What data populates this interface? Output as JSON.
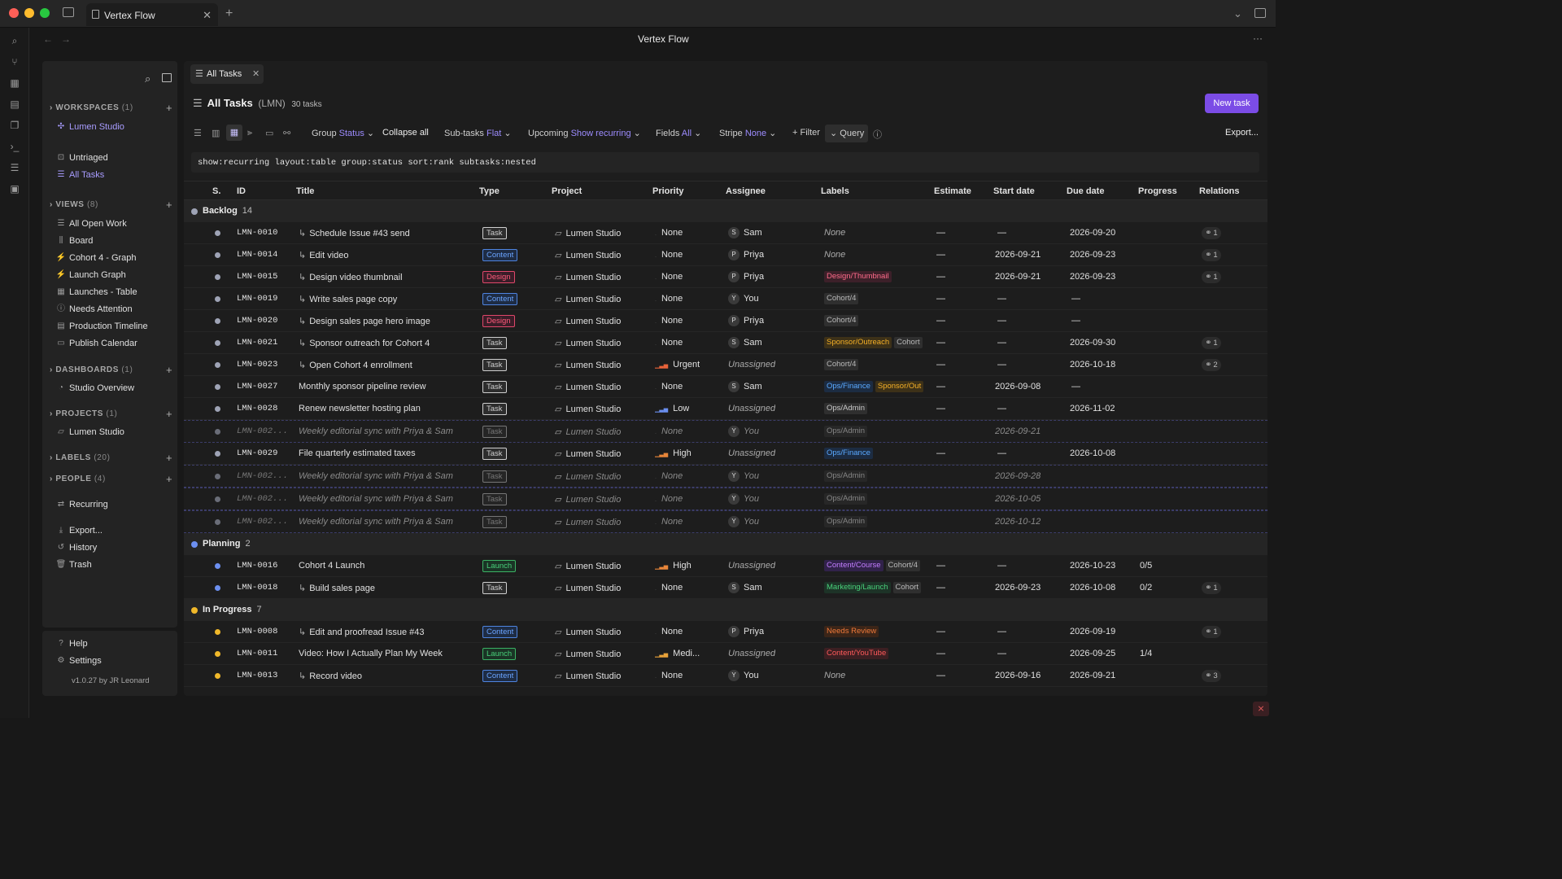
{
  "window": {
    "tab_title": "Vertex Flow",
    "title": "Vertex Flow",
    "menu": "···"
  },
  "sidebar": {
    "workspaces": {
      "label": "WORKSPACES",
      "count": "(1)",
      "items": [
        "Lumen Studio"
      ]
    },
    "top_items": [
      "Untriaged",
      "All Tasks"
    ],
    "views": {
      "label": "VIEWS",
      "count": "(8)",
      "items": [
        "All Open Work",
        "Board",
        "Cohort 4 - Graph",
        "Launch Graph",
        "Launches - Table",
        "Needs Attention",
        "Production Timeline",
        "Publish Calendar"
      ]
    },
    "dashboards": {
      "label": "DASHBOARDS",
      "count": "(1)",
      "items": [
        "Studio Overview"
      ]
    },
    "projects": {
      "label": "PROJECTS",
      "count": "(1)",
      "items": [
        "Lumen Studio"
      ]
    },
    "labels": {
      "label": "LABELS",
      "count": "(20)"
    },
    "people": {
      "label": "PEOPLE",
      "count": "(4)"
    },
    "recurring": "Recurring",
    "tools": [
      "Export...",
      "History",
      "Trash"
    ],
    "bottom": [
      "Help",
      "Settings"
    ],
    "version": "v1.0.27 by JR Leonard"
  },
  "main": {
    "tab_label": "All Tasks",
    "title": "All Tasks",
    "code": "(LMN)",
    "count": "30 tasks",
    "new_task": "New task",
    "toolbar": {
      "group_label": "Group",
      "group_value": "Status",
      "collapse": "Collapse all",
      "subtasks_label": "Sub-tasks",
      "subtasks_value": "Flat",
      "upcoming_label": "Upcoming",
      "upcoming_value": "Show recurring",
      "fields_label": "Fields",
      "fields_value": "All",
      "stripe_label": "Stripe",
      "stripe_value": "None",
      "filter": "+ Filter",
      "query": "Query",
      "export": "Export..."
    },
    "query": "show:recurring layout:table group:status sort:rank subtasks:nested",
    "columns": [
      "S.",
      "ID",
      "Title",
      "Type",
      "Project",
      "Priority",
      "Assignee",
      "Labels",
      "Estimate",
      "Start date",
      "Due date",
      "Progress",
      "Relations"
    ]
  },
  "colors": {
    "accent": "#9d8cff",
    "button": "#7b4ce6",
    "backlog": "#9ea3b5",
    "planning": "#6c8ff0",
    "inprogress": "#f0b82a"
  },
  "groups": [
    {
      "name": "Backlog",
      "count": "14",
      "color": "#9ea3b5",
      "rows": [
        {
          "id": "LMN-0010",
          "title": "Schedule Issue #43 send",
          "sub": true,
          "type": "Task",
          "project": "Lumen Studio",
          "priority": "None",
          "assignee": "Sam",
          "av": "S",
          "labels": [],
          "labels_none": "None",
          "estimate": "—",
          "start": "—",
          "due": "2026-09-20",
          "progress": "",
          "rel": "1"
        },
        {
          "id": "LMN-0014",
          "title": "Edit video",
          "sub": true,
          "type": "Content",
          "project": "Lumen Studio",
          "priority": "None",
          "assignee": "Priya",
          "av": "P",
          "labels": [],
          "labels_none": "None",
          "estimate": "—",
          "start": "2026-09-21",
          "due": "2026-09-23",
          "progress": "",
          "rel": "1"
        },
        {
          "id": "LMN-0015",
          "title": "Design video thumbnail",
          "sub": true,
          "type": "Design",
          "project": "Lumen Studio",
          "priority": "None",
          "assignee": "Priya",
          "av": "P",
          "labels": [
            "Design/Thumbnail"
          ],
          "estimate": "—",
          "start": "2026-09-21",
          "due": "2026-09-23",
          "progress": "",
          "rel": "1"
        },
        {
          "id": "LMN-0019",
          "title": "Write sales page copy",
          "sub": true,
          "type": "Content",
          "project": "Lumen Studio",
          "priority": "None",
          "assignee": "You",
          "av": "Y",
          "labels": [
            "Cohort/4"
          ],
          "estimate": "—",
          "start": "—",
          "due": "—",
          "progress": "",
          "rel": ""
        },
        {
          "id": "LMN-0020",
          "title": "Design sales page hero image",
          "sub": true,
          "type": "Design",
          "project": "Lumen Studio",
          "priority": "None",
          "assignee": "Priya",
          "av": "P",
          "labels": [
            "Cohort/4"
          ],
          "estimate": "—",
          "start": "—",
          "due": "—",
          "progress": "",
          "rel": ""
        },
        {
          "id": "LMN-0021",
          "title": "Sponsor outreach for Cohort 4",
          "sub": true,
          "type": "Task",
          "project": "Lumen Studio",
          "priority": "None",
          "assignee": "Sam",
          "av": "S",
          "labels": [
            "Sponsor/Outreach",
            "Cohort"
          ],
          "estimate": "—",
          "start": "—",
          "due": "2026-09-30",
          "progress": "",
          "rel": "1"
        },
        {
          "id": "LMN-0023",
          "title": "Open Cohort 4 enrollment",
          "sub": true,
          "type": "Task",
          "project": "Lumen Studio",
          "priority": "Urgent",
          "assignee": "Unassigned",
          "av": "",
          "labels": [
            "Cohort/4"
          ],
          "estimate": "—",
          "start": "—",
          "due": "2026-10-18",
          "progress": "",
          "rel": "2"
        },
        {
          "id": "LMN-0027",
          "title": "Monthly sponsor pipeline review",
          "sub": false,
          "type": "Task",
          "project": "Lumen Studio",
          "priority": "None",
          "assignee": "Sam",
          "av": "S",
          "labels": [
            "Ops/Finance",
            "Sponsor/Out"
          ],
          "estimate": "—",
          "start": "2026-09-08",
          "due": "—",
          "progress": "",
          "rel": ""
        },
        {
          "id": "LMN-0028",
          "title": "Renew newsletter hosting plan",
          "sub": false,
          "type": "Task",
          "project": "Lumen Studio",
          "priority": "Low",
          "assignee": "Unassigned",
          "av": "",
          "labels": [
            "Ops/Admin"
          ],
          "estimate": "—",
          "start": "—",
          "due": "2026-11-02",
          "progress": "",
          "rel": ""
        },
        {
          "id": "LMN-002...",
          "title": "Weekly editorial sync with Priya & Sam",
          "rec": true,
          "type": "Task",
          "project": "Lumen Studio",
          "priority": "None",
          "assignee": "You",
          "av": "Y",
          "labels": [
            "Ops/Admin"
          ],
          "estimate": "",
          "start": "2026-09-21",
          "due": "",
          "progress": "",
          "rel": ""
        },
        {
          "id": "LMN-0029",
          "title": "File quarterly estimated taxes",
          "sub": false,
          "type": "Task",
          "project": "Lumen Studio",
          "priority": "High",
          "assignee": "Unassigned",
          "av": "",
          "labels": [
            "Ops/Finance"
          ],
          "estimate": "—",
          "start": "—",
          "due": "2026-10-08",
          "progress": "",
          "rel": ""
        },
        {
          "id": "LMN-002...",
          "title": "Weekly editorial sync with Priya & Sam",
          "rec": true,
          "type": "Task",
          "project": "Lumen Studio",
          "priority": "None",
          "assignee": "You",
          "av": "Y",
          "labels": [
            "Ops/Admin"
          ],
          "estimate": "",
          "start": "2026-09-28",
          "due": "",
          "progress": "",
          "rel": ""
        },
        {
          "id": "LMN-002...",
          "title": "Weekly editorial sync with Priya & Sam",
          "rec": true,
          "type": "Task",
          "project": "Lumen Studio",
          "priority": "None",
          "assignee": "You",
          "av": "Y",
          "labels": [
            "Ops/Admin"
          ],
          "estimate": "",
          "start": "2026-10-05",
          "due": "",
          "progress": "",
          "rel": ""
        },
        {
          "id": "LMN-002...",
          "title": "Weekly editorial sync with Priya & Sam",
          "rec": true,
          "type": "Task",
          "project": "Lumen Studio",
          "priority": "None",
          "assignee": "You",
          "av": "Y",
          "labels": [
            "Ops/Admin"
          ],
          "estimate": "",
          "start": "2026-10-12",
          "due": "",
          "progress": "",
          "rel": ""
        }
      ]
    },
    {
      "name": "Planning",
      "count": "2",
      "color": "#6c8ff0",
      "rows": [
        {
          "id": "LMN-0016",
          "title": "Cohort 4 Launch",
          "sub": false,
          "type": "Launch",
          "project": "Lumen Studio",
          "priority": "High",
          "assignee": "Unassigned",
          "av": "",
          "labels": [
            "Content/Course",
            "Cohort/4"
          ],
          "estimate": "—",
          "start": "—",
          "due": "2026-10-23",
          "progress": "0/5",
          "rel": ""
        },
        {
          "id": "LMN-0018",
          "title": "Build sales page",
          "sub": true,
          "type": "Task",
          "project": "Lumen Studio",
          "priority": "None",
          "assignee": "Sam",
          "av": "S",
          "labels": [
            "Marketing/Launch",
            "Cohort"
          ],
          "estimate": "—",
          "start": "2026-09-23",
          "due": "2026-10-08",
          "progress": "0/2",
          "rel": "1"
        }
      ]
    },
    {
      "name": "In Progress",
      "count": "7",
      "color": "#f0b82a",
      "rows": [
        {
          "id": "LMN-0008",
          "title": "Edit and proofread Issue #43",
          "sub": true,
          "type": "Content",
          "project": "Lumen Studio",
          "priority": "None",
          "assignee": "Priya",
          "av": "P",
          "labels": [
            "Needs Review"
          ],
          "estimate": "—",
          "start": "—",
          "due": "2026-09-19",
          "progress": "",
          "rel": "1"
        },
        {
          "id": "LMN-0011",
          "title": "Video: How I Actually Plan My Week",
          "sub": false,
          "type": "Launch",
          "project": "Lumen Studio",
          "priority": "Medi...",
          "assignee": "Unassigned",
          "av": "",
          "labels": [
            "Content/YouTube"
          ],
          "estimate": "—",
          "start": "—",
          "due": "2026-09-25",
          "progress": "1/4",
          "rel": ""
        },
        {
          "id": "LMN-0013",
          "title": "Record video",
          "sub": true,
          "type": "Content",
          "project": "Lumen Studio",
          "priority": "None",
          "assignee": "You",
          "av": "Y",
          "labels": [],
          "labels_none": "None",
          "estimate": "—",
          "start": "2026-09-16",
          "due": "2026-09-21",
          "progress": "",
          "rel": "3"
        }
      ]
    }
  ]
}
